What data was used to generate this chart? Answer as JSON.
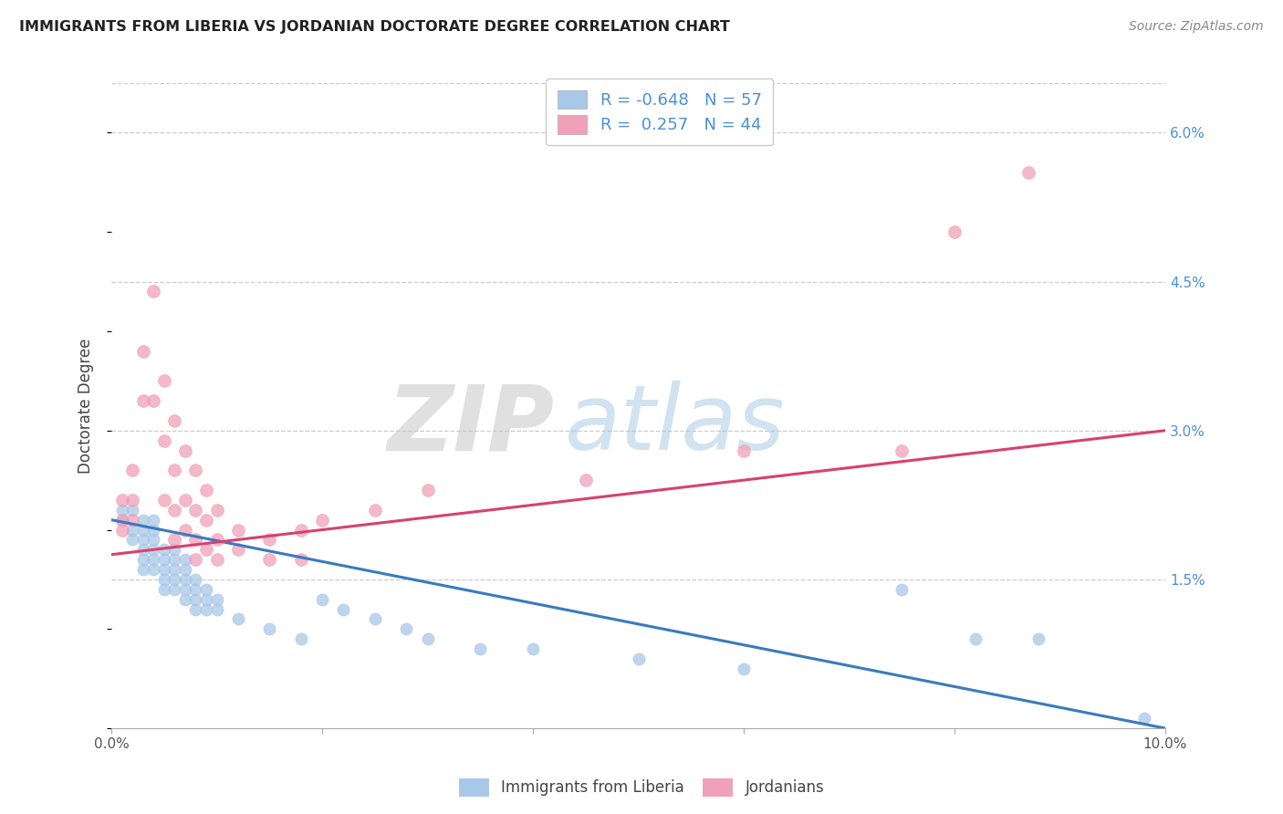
{
  "title": "IMMIGRANTS FROM LIBERIA VS JORDANIAN DOCTORATE DEGREE CORRELATION CHART",
  "source": "Source: ZipAtlas.com",
  "ylabel": "Doctorate Degree",
  "x_min": 0.0,
  "x_max": 0.1,
  "y_min": 0.0,
  "y_max": 0.065,
  "x_ticks": [
    0.0,
    0.02,
    0.04,
    0.06,
    0.08,
    0.1
  ],
  "x_tick_labels": [
    "0.0%",
    "",
    "",
    "",
    "",
    "10.0%"
  ],
  "y_ticks_right": [
    0.015,
    0.03,
    0.045,
    0.06
  ],
  "y_tick_labels_right": [
    "1.5%",
    "3.0%",
    "4.5%",
    "6.0%"
  ],
  "color_liberia": "#a8c8e8",
  "color_jordanian": "#f0a0b8",
  "color_line_liberia": "#3a7abf",
  "color_line_jordanian": "#d94070",
  "legend_R_liberia": "-0.648",
  "legend_N_liberia": "57",
  "legend_R_jordanian": "0.257",
  "legend_N_jordanian": "44",
  "watermark_zip": "ZIP",
  "watermark_atlas": "atlas",
  "legend_label_liberia": "Immigrants from Liberia",
  "legend_label_jordanian": "Jordanians",
  "liberia_points": [
    [
      0.001,
      0.022
    ],
    [
      0.001,
      0.021
    ],
    [
      0.002,
      0.022
    ],
    [
      0.002,
      0.02
    ],
    [
      0.002,
      0.019
    ],
    [
      0.003,
      0.021
    ],
    [
      0.003,
      0.02
    ],
    [
      0.003,
      0.019
    ],
    [
      0.003,
      0.018
    ],
    [
      0.003,
      0.017
    ],
    [
      0.003,
      0.016
    ],
    [
      0.004,
      0.021
    ],
    [
      0.004,
      0.019
    ],
    [
      0.004,
      0.018
    ],
    [
      0.004,
      0.017
    ],
    [
      0.004,
      0.016
    ],
    [
      0.004,
      0.02
    ],
    [
      0.005,
      0.018
    ],
    [
      0.005,
      0.017
    ],
    [
      0.005,
      0.016
    ],
    [
      0.005,
      0.015
    ],
    [
      0.005,
      0.014
    ],
    [
      0.006,
      0.017
    ],
    [
      0.006,
      0.016
    ],
    [
      0.006,
      0.015
    ],
    [
      0.006,
      0.014
    ],
    [
      0.006,
      0.018
    ],
    [
      0.007,
      0.016
    ],
    [
      0.007,
      0.015
    ],
    [
      0.007,
      0.014
    ],
    [
      0.007,
      0.013
    ],
    [
      0.007,
      0.017
    ],
    [
      0.008,
      0.015
    ],
    [
      0.008,
      0.014
    ],
    [
      0.008,
      0.013
    ],
    [
      0.008,
      0.012
    ],
    [
      0.009,
      0.014
    ],
    [
      0.009,
      0.013
    ],
    [
      0.009,
      0.012
    ],
    [
      0.01,
      0.013
    ],
    [
      0.01,
      0.012
    ],
    [
      0.012,
      0.011
    ],
    [
      0.015,
      0.01
    ],
    [
      0.018,
      0.009
    ],
    [
      0.02,
      0.013
    ],
    [
      0.022,
      0.012
    ],
    [
      0.025,
      0.011
    ],
    [
      0.028,
      0.01
    ],
    [
      0.03,
      0.009
    ],
    [
      0.035,
      0.008
    ],
    [
      0.04,
      0.008
    ],
    [
      0.05,
      0.007
    ],
    [
      0.06,
      0.006
    ],
    [
      0.075,
      0.014
    ],
    [
      0.082,
      0.009
    ],
    [
      0.088,
      0.009
    ],
    [
      0.098,
      0.001
    ]
  ],
  "jordanian_points": [
    [
      0.001,
      0.023
    ],
    [
      0.001,
      0.021
    ],
    [
      0.001,
      0.02
    ],
    [
      0.002,
      0.026
    ],
    [
      0.002,
      0.023
    ],
    [
      0.002,
      0.021
    ],
    [
      0.003,
      0.038
    ],
    [
      0.003,
      0.033
    ],
    [
      0.004,
      0.044
    ],
    [
      0.004,
      0.033
    ],
    [
      0.005,
      0.035
    ],
    [
      0.005,
      0.029
    ],
    [
      0.005,
      0.023
    ],
    [
      0.006,
      0.031
    ],
    [
      0.006,
      0.026
    ],
    [
      0.006,
      0.022
    ],
    [
      0.006,
      0.019
    ],
    [
      0.007,
      0.028
    ],
    [
      0.007,
      0.023
    ],
    [
      0.007,
      0.02
    ],
    [
      0.008,
      0.026
    ],
    [
      0.008,
      0.022
    ],
    [
      0.008,
      0.019
    ],
    [
      0.008,
      0.017
    ],
    [
      0.009,
      0.024
    ],
    [
      0.009,
      0.021
    ],
    [
      0.009,
      0.018
    ],
    [
      0.01,
      0.022
    ],
    [
      0.01,
      0.019
    ],
    [
      0.01,
      0.017
    ],
    [
      0.012,
      0.02
    ],
    [
      0.012,
      0.018
    ],
    [
      0.015,
      0.019
    ],
    [
      0.015,
      0.017
    ],
    [
      0.018,
      0.02
    ],
    [
      0.018,
      0.017
    ],
    [
      0.02,
      0.021
    ],
    [
      0.025,
      0.022
    ],
    [
      0.03,
      0.024
    ],
    [
      0.045,
      0.025
    ],
    [
      0.06,
      0.028
    ],
    [
      0.075,
      0.028
    ],
    [
      0.08,
      0.05
    ],
    [
      0.087,
      0.056
    ]
  ],
  "liberia_trend_x": [
    0.0,
    0.1
  ],
  "liberia_trend_y": [
    0.021,
    0.0
  ],
  "jordanian_trend_x": [
    0.0,
    0.1
  ],
  "jordanian_trend_y": [
    0.0175,
    0.03
  ],
  "background_color": "#ffffff",
  "grid_color": "#cccccc",
  "title_fontsize": 11.5,
  "axis_label_color": "#4a90d9",
  "zip_color": "#c8c8c8",
  "atlas_color": "#9ac0e0"
}
